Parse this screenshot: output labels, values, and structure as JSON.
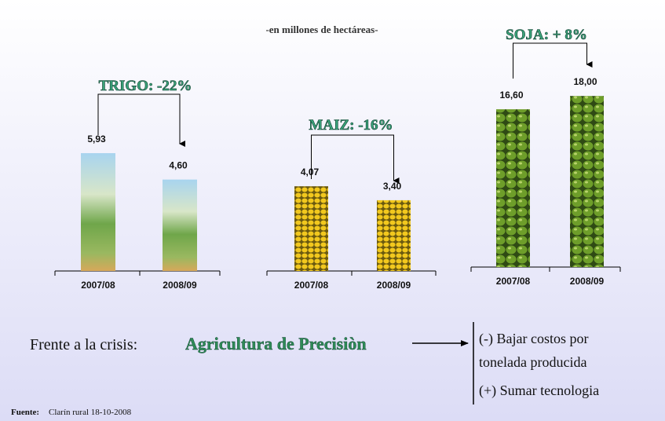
{
  "subtitle": "-en millones de hectáreas-",
  "chart_data": [
    {
      "type": "bar",
      "title": "TRIGO: -22%",
      "categories": [
        "2007/08",
        "2008/09"
      ],
      "values": [
        5.93,
        4.6
      ],
      "value_labels": [
        "5,93",
        "4,60"
      ]
    },
    {
      "type": "bar",
      "title": "MAIZ: -16%",
      "categories": [
        "2007/08",
        "2008/09"
      ],
      "values": [
        4.07,
        3.4
      ],
      "value_labels": [
        "4,07",
        "3,40"
      ]
    },
    {
      "type": "bar",
      "title": "SOJA: + 8%",
      "categories": [
        "2007/08",
        "2008/09"
      ],
      "values": [
        16.6,
        18.0
      ],
      "value_labels": [
        "16,60",
        "18,00"
      ]
    }
  ],
  "summary": {
    "lead": "Frente a la crisis:",
    "emphasis": "Agricultura de Precisiòn",
    "points": [
      "(-) Bajar costos por",
      "tonelada producida",
      "(+) Sumar tecnologia"
    ]
  },
  "source": {
    "label": "Fuente:",
    "text": "Clarín rural 18-10-2008"
  }
}
